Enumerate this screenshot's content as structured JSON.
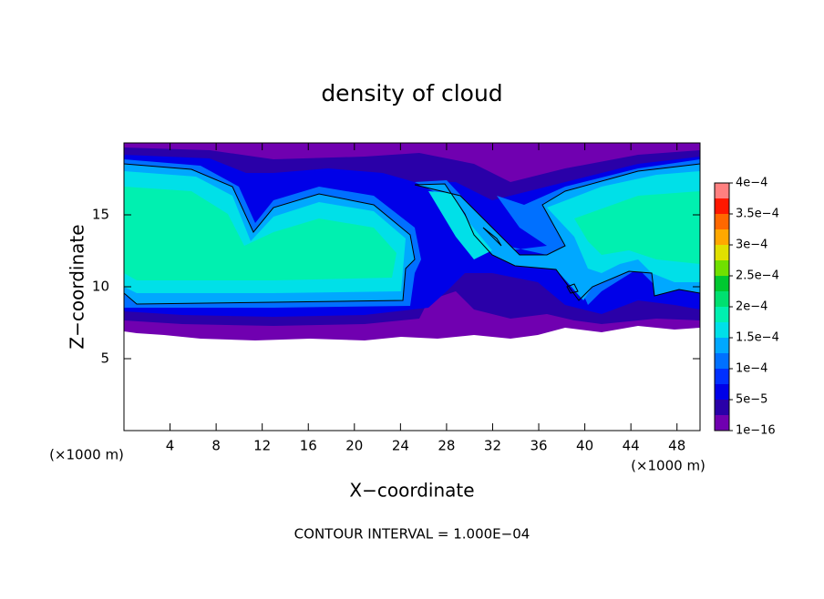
{
  "chart_data": {
    "type": "contour",
    "title": "density of cloud",
    "xlabel": "X−coordinate",
    "ylabel": "Z−coordinate",
    "x_unit": "(×1000 m)",
    "y_unit": "(×1000 m)",
    "xlim": [
      0,
      50
    ],
    "ylim": [
      0,
      20
    ],
    "xticks": [
      4,
      8,
      12,
      16,
      20,
      24,
      28,
      32,
      36,
      40,
      44,
      48
    ],
    "yticks": [
      5,
      10,
      15
    ],
    "colorbar": {
      "lim": [
        1e-16,
        0.0004
      ],
      "ticks": [
        {
          "value": 1e-16,
          "label": "1e−16"
        },
        {
          "value": 5e-05,
          "label": "5e−5"
        },
        {
          "value": 0.0001,
          "label": "1e−4"
        },
        {
          "value": 0.00015,
          "label": "1.5e−4"
        },
        {
          "value": 0.0002,
          "label": "2e−4"
        },
        {
          "value": 0.00025,
          "label": "2.5e−4"
        },
        {
          "value": 0.0003,
          "label": "3e−4"
        },
        {
          "value": 0.00035,
          "label": "3.5e−4"
        },
        {
          "value": 0.0004,
          "label": "4e−4"
        }
      ],
      "colors": [
        "#7000b0",
        "#2a00a8",
        "#0000e8",
        "#0030ff",
        "#0070ff",
        "#00a8ff",
        "#00e0e8",
        "#00f0b0",
        "#00e070",
        "#00c830",
        "#70e000",
        "#e0e000",
        "#ffa800",
        "#ff6800",
        "#ff1800",
        "#ff8080"
      ]
    },
    "footnote": "CONTOUR INTERVAL = 1.000E−04"
  }
}
